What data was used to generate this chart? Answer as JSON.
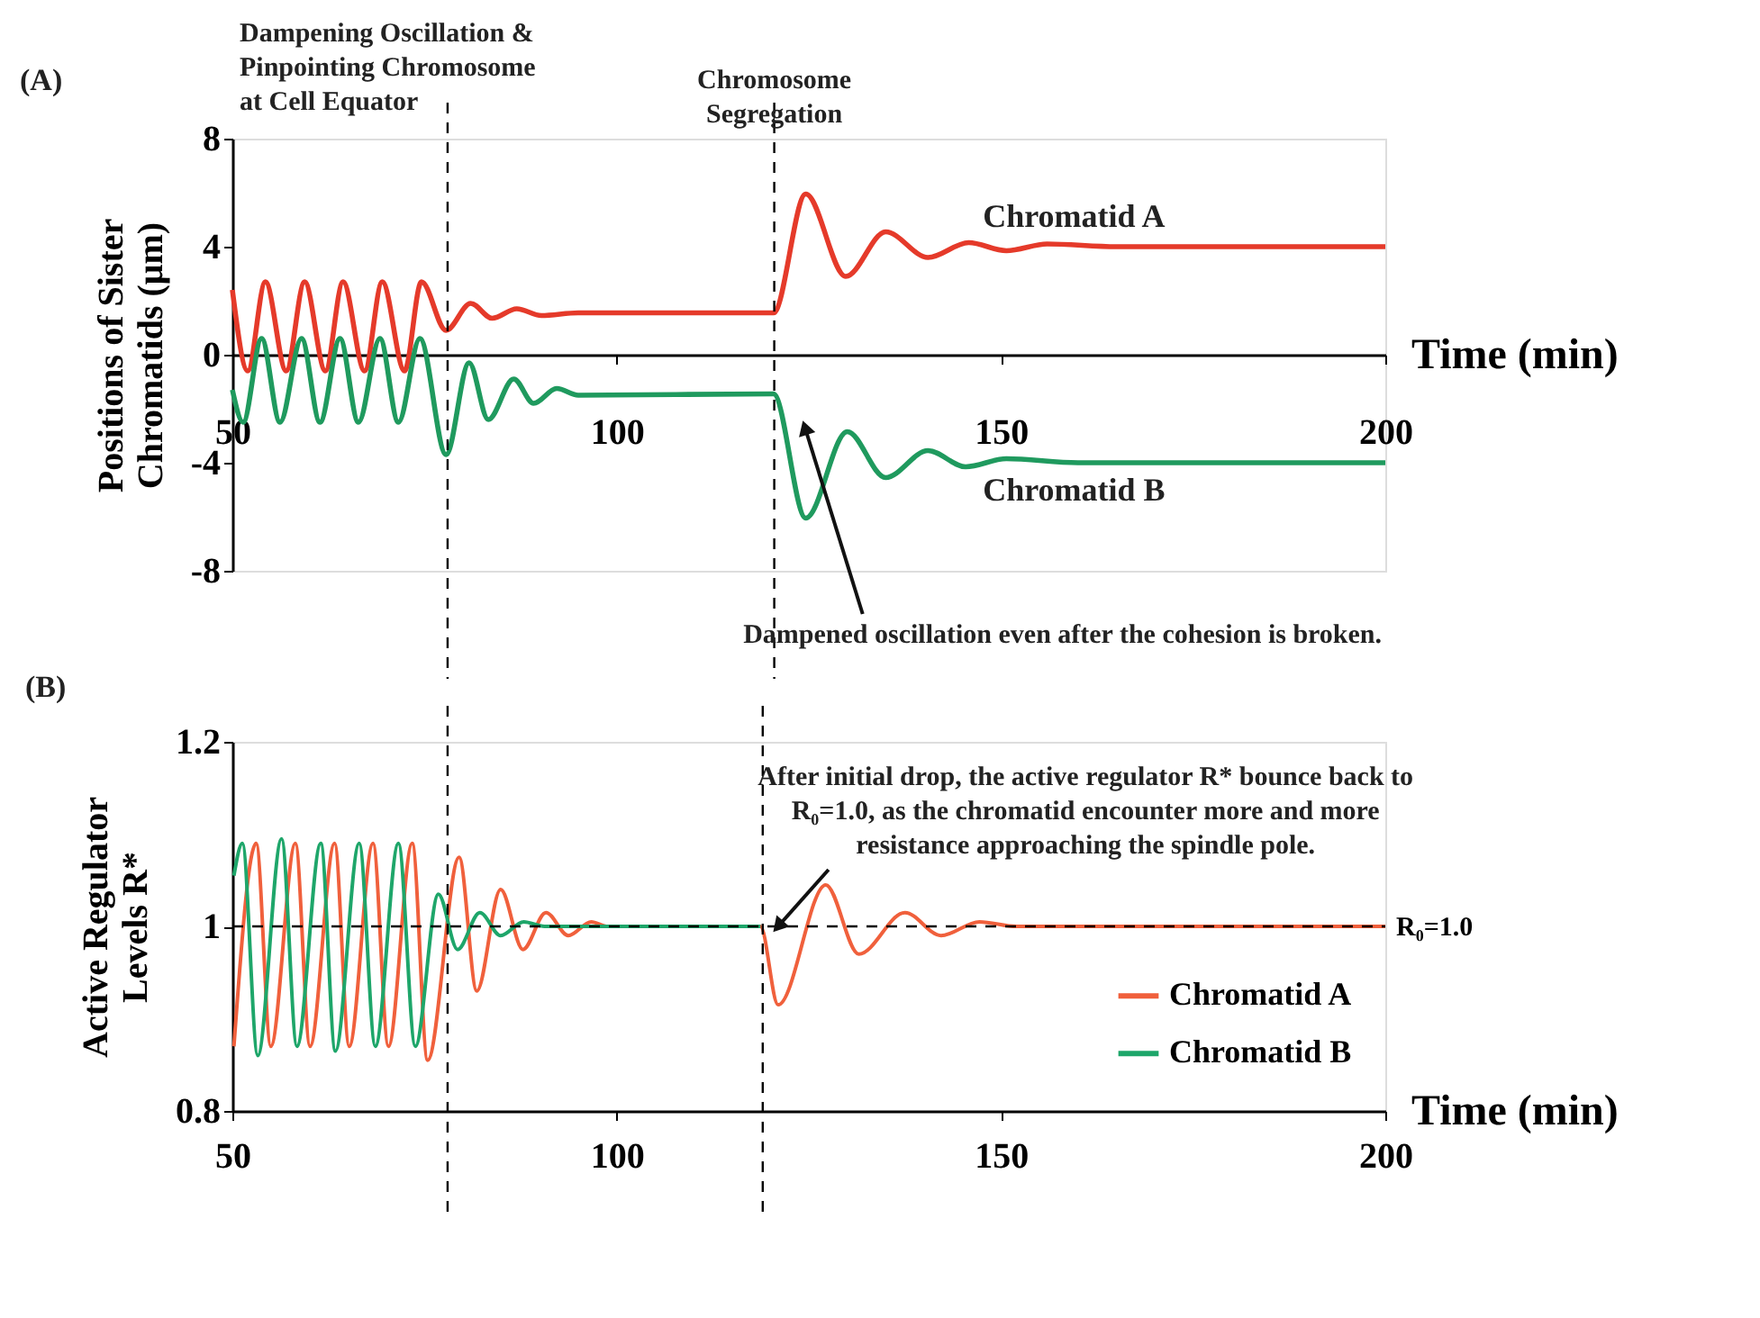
{
  "chart_data": [
    {
      "type": "line",
      "ylabel": "Positions of Sister Chromatids (μm)",
      "xlabel": "Time (min)",
      "xlim": [
        50,
        200
      ],
      "xticks": [
        50,
        100,
        150,
        200
      ],
      "ylim": [
        -8,
        8
      ],
      "yticks": [
        -8,
        -4,
        0,
        4,
        8
      ],
      "line_style": "solid",
      "series": [
        {
          "name": "Chromatid A",
          "color": "#e53a2a",
          "x": [
            50,
            52.0,
            54.3,
            57.0,
            59.4,
            62.1,
            64.4,
            67.2,
            69.5,
            72.4,
            74.6,
            77.8,
            81.0,
            83.8,
            87.0,
            90.2,
            95,
            120.4,
            124.6,
            129.8,
            135,
            140.5,
            145.8,
            150.7,
            156,
            165,
            200
          ],
          "values": [
            2.4,
            -0.6,
            2.7,
            -0.6,
            2.7,
            -0.6,
            2.7,
            -0.6,
            2.7,
            -0.6,
            2.7,
            0.9,
            1.9,
            1.35,
            1.7,
            1.45,
            1.55,
            1.55,
            5.95,
            2.9,
            4.55,
            3.6,
            4.15,
            3.85,
            4.1,
            4.0,
            4.0
          ]
        },
        {
          "name": "Chromatid B",
          "color": "#1f9a5e",
          "x": [
            50,
            51.4,
            53.8,
            56.2,
            59.0,
            61.4,
            64.0,
            66.4,
            69.2,
            71.6,
            74.4,
            77.8,
            80.8,
            83.3,
            86.6,
            89.2,
            92.2,
            95.0,
            120.4,
            124.6,
            130,
            135,
            140.5,
            145.4,
            150.7,
            160,
            200
          ],
          "values": [
            -1.3,
            -2.5,
            0.6,
            -2.5,
            0.6,
            -2.5,
            0.6,
            -2.5,
            0.6,
            -2.5,
            0.6,
            -3.7,
            -0.3,
            -2.4,
            -0.9,
            -1.8,
            -1.25,
            -1.5,
            -1.45,
            -6.05,
            -2.85,
            -4.55,
            -3.55,
            -4.15,
            -3.85,
            -4.0,
            -4.0
          ]
        }
      ],
      "ref_lines": [
        {
          "axis": "x",
          "value": 78,
          "color": "#000000",
          "line_style": "dashed"
        },
        {
          "axis": "x",
          "value": 120.5,
          "color": "#000000",
          "line_style": "dashed"
        }
      ],
      "annotations": [
        "(A)",
        "Dampening Oscillation & Pinpointing Chromosome at Cell Equator",
        "Chromosome Segregation",
        {
          "text": "Dampened oscillation even after the cohesion is broken.",
          "x": 124.5,
          "y": -2.7
        }
      ]
    },
    {
      "type": "line",
      "ylabel": "Active Regulator Levels R*",
      "xlabel": "Time (min)",
      "xlim": [
        50,
        200
      ],
      "xticks": [
        50,
        100,
        150,
        200
      ],
      "ylim": [
        0.8,
        1.2
      ],
      "yticks": [
        0.8,
        1,
        1.2
      ],
      "legend": "right",
      "line_style": "solid",
      "series": [
        {
          "name": "Chromatid A",
          "color": "#f0603c",
          "x": [
            50.2,
            53.1,
            55.0,
            58.2,
            60.1,
            63.3,
            65.2,
            68.3,
            70.3,
            73.4,
            75.4,
            79.5,
            81.8,
            84.9,
            87.8,
            90.8,
            93.7,
            96.7,
            98.7,
            118.7,
            121.0,
            127.2,
            131.5,
            137.5,
            142.2,
            147.2,
            152,
            200
          ],
          "values": [
            0.87,
            1.09,
            0.87,
            1.09,
            0.87,
            1.09,
            0.87,
            1.09,
            0.87,
            1.09,
            0.855,
            1.075,
            0.93,
            1.04,
            0.975,
            1.015,
            0.99,
            1.005,
            1.0,
            1.0,
            0.915,
            1.045,
            0.97,
            1.015,
            0.99,
            1.005,
            1.0,
            1.0
          ]
        },
        {
          "name": "Chromatid B",
          "color": "#1ea66a",
          "x": [
            50.2,
            51.3,
            53.3,
            56.4,
            58.4,
            61.5,
            63.4,
            66.5,
            68.6,
            71.6,
            73.8,
            76.8,
            79.3,
            82.2,
            84.9,
            87.9,
            90.6,
            118.7
          ],
          "values": [
            1.055,
            1.09,
            0.86,
            1.095,
            0.87,
            1.09,
            0.865,
            1.09,
            0.87,
            1.09,
            0.87,
            1.035,
            0.975,
            1.015,
            0.99,
            1.005,
            1.0,
            1.0
          ]
        }
      ],
      "ref_lines": [
        {
          "axis": "y",
          "value": 1,
          "label": "R₀=1.0",
          "color": "#000000",
          "line_style": "dashed"
        },
        {
          "axis": "x",
          "value": 78,
          "color": "#000000",
          "line_style": "dashed"
        },
        {
          "axis": "x",
          "value": 119,
          "color": "#000000",
          "line_style": "dashed"
        }
      ],
      "annotations": [
        "(B)",
        {
          "text": "After initial drop, the active regulator R* bounce back to R₀=1.0, as the chromatid encounter more and more resistance approaching the spindle pole.",
          "x": 121,
          "y": 1.0
        }
      ]
    }
  ]
}
